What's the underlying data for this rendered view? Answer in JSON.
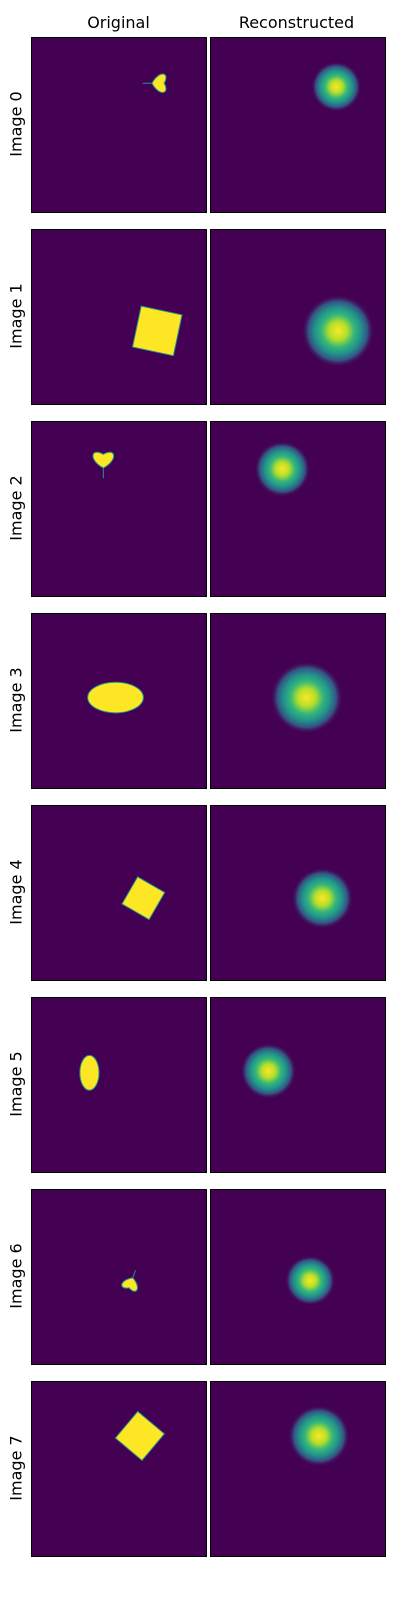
{
  "columns": [
    "Original",
    "Reconstructed"
  ],
  "chart_data": {
    "type": "image-grid",
    "colormap": "viridis",
    "background_color": "#440154",
    "shape_color": "#fde725",
    "edge_color": "#21918c",
    "columns": [
      "Original",
      "Reconstructed"
    ],
    "rows": [
      {
        "label": "Image 0",
        "shape": "heart",
        "cx": 0.72,
        "cy": 0.26,
        "scale": 0.08,
        "angle": 90,
        "recon_cx": 0.72,
        "recon_cy": 0.28,
        "recon_r": 0.09
      },
      {
        "label": "Image 1",
        "shape": "square",
        "cx": 0.72,
        "cy": 0.58,
        "scale": 0.12,
        "angle": 12,
        "recon_cx": 0.73,
        "recon_cy": 0.58,
        "recon_r": 0.13
      },
      {
        "label": "Image 2",
        "shape": "heart",
        "cx": 0.41,
        "cy": 0.23,
        "scale": 0.09,
        "angle": 0,
        "recon_cx": 0.41,
        "recon_cy": 0.27,
        "recon_r": 0.1
      },
      {
        "label": "Image 3",
        "shape": "ellipse",
        "cx": 0.48,
        "cy": 0.48,
        "scale": 0.16,
        "aspect": 0.55,
        "angle": 0,
        "recon_cx": 0.55,
        "recon_cy": 0.48,
        "recon_r": 0.13
      },
      {
        "label": "Image 4",
        "shape": "square",
        "cx": 0.64,
        "cy": 0.53,
        "scale": 0.09,
        "angle": 30,
        "recon_cx": 0.64,
        "recon_cy": 0.53,
        "recon_r": 0.11
      },
      {
        "label": "Image 5",
        "shape": "ellipse",
        "cx": 0.33,
        "cy": 0.43,
        "scale": 0.1,
        "aspect": 0.55,
        "angle": 90,
        "recon_cx": 0.33,
        "recon_cy": 0.42,
        "recon_r": 0.1
      },
      {
        "label": "Image 6",
        "shape": "heart",
        "cx": 0.57,
        "cy": 0.53,
        "scale": 0.07,
        "angle": 200,
        "recon_cx": 0.57,
        "recon_cy": 0.52,
        "recon_r": 0.09
      },
      {
        "label": "Image 7",
        "shape": "square",
        "cx": 0.62,
        "cy": 0.31,
        "scale": 0.1,
        "angle": 40,
        "recon_cx": 0.62,
        "recon_cy": 0.31,
        "recon_r": 0.11
      }
    ]
  }
}
